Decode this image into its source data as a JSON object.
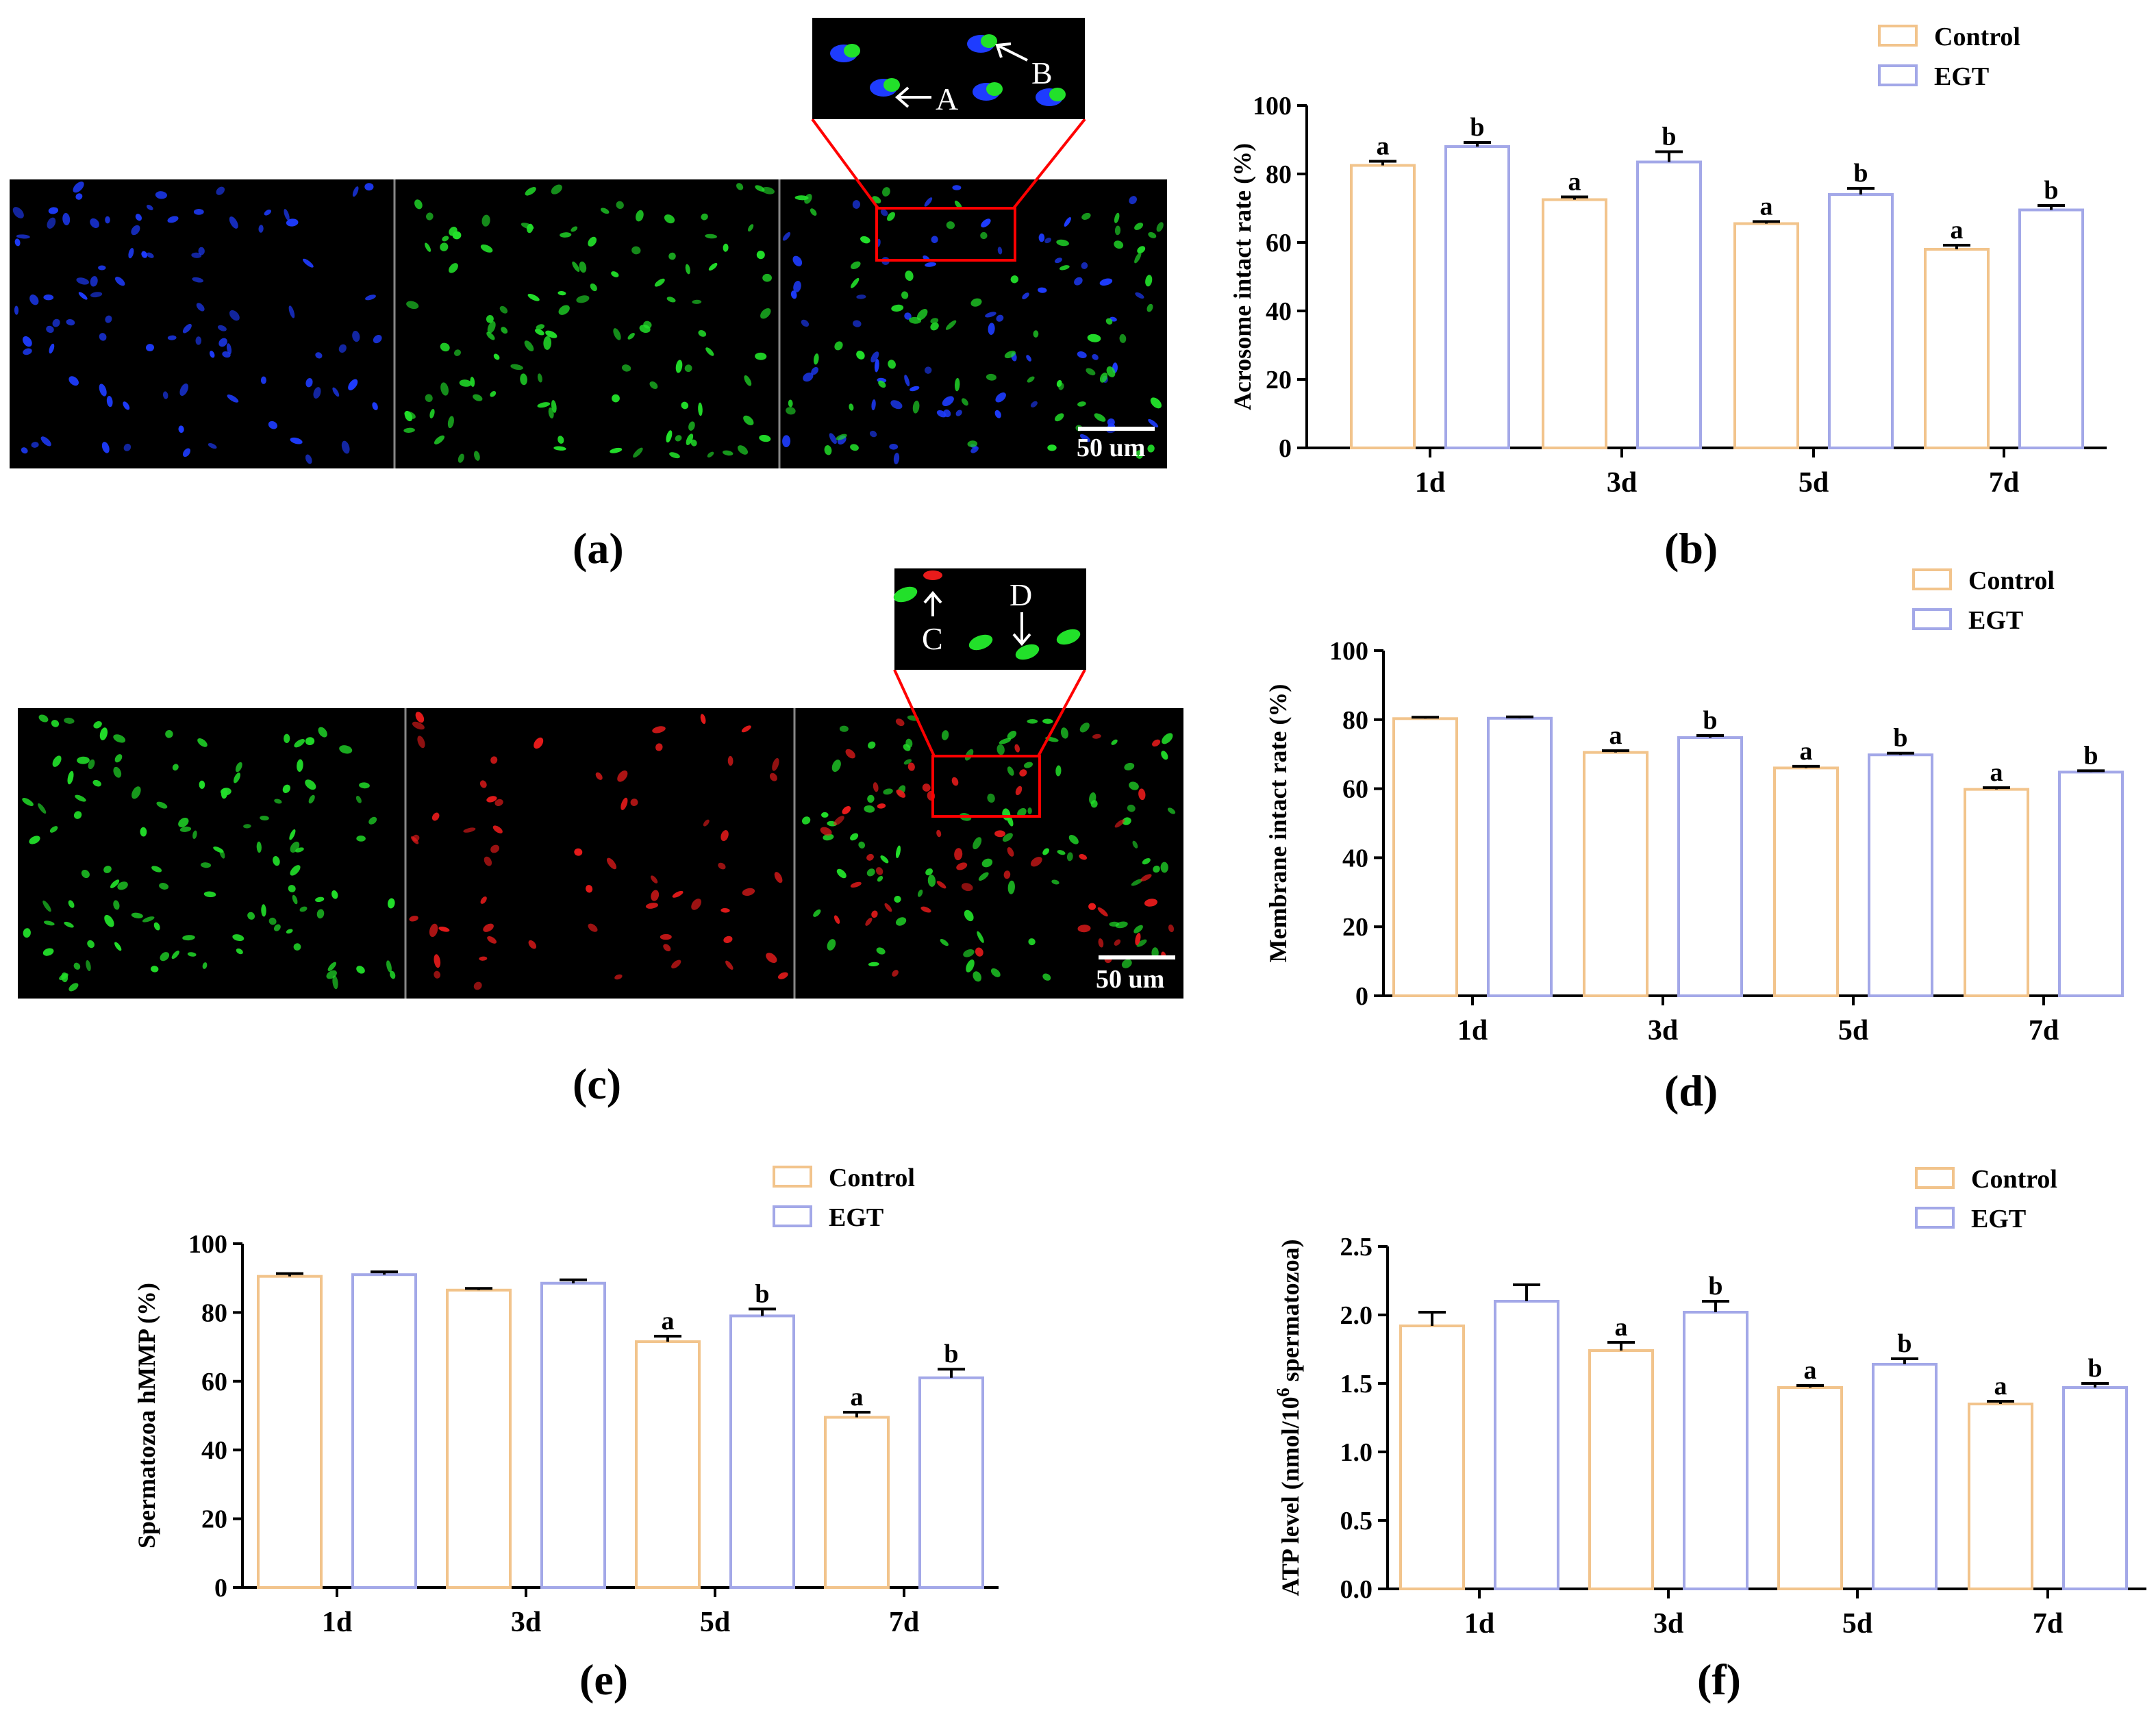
{
  "colors": {
    "control": "#f2c48c",
    "egt": "#a3a8e8",
    "blue_stain": "#1e3cff",
    "green_stain": "#22e02a",
    "red_stain": "#e81b1b",
    "zoom_box": "#ff0000"
  },
  "panels": {
    "a": "(a)",
    "b": "(b)",
    "c": "(c)",
    "d": "(d)",
    "e": "(e)",
    "f": "(f)"
  },
  "micrographs": [
    {
      "id": "a",
      "scale_bar": "50 um",
      "arrow_labels": [
        "A",
        "B"
      ],
      "subpanel_channels": [
        "blue",
        "green",
        "merge"
      ]
    },
    {
      "id": "c",
      "scale_bar": "50 um",
      "arrow_labels": [
        "C",
        "D"
      ],
      "subpanel_channels": [
        "green",
        "red",
        "merge"
      ]
    }
  ],
  "chart_data": [
    {
      "id": "b",
      "type": "bar",
      "categories": [
        "1d",
        "3d",
        "5d",
        "7d"
      ],
      "series": [
        {
          "name": "Control",
          "values": [
            82.5,
            72.5,
            65.5,
            58.0
          ],
          "errors": [
            1.2,
            0.8,
            0.6,
            1.2
          ],
          "sig": [
            "a",
            "a",
            "a",
            "a"
          ]
        },
        {
          "name": "EGT",
          "values": [
            88.0,
            83.5,
            74.0,
            69.5
          ],
          "errors": [
            1.2,
            3.0,
            1.8,
            1.3
          ],
          "sig": [
            "b",
            "b",
            "b",
            "b"
          ]
        }
      ],
      "ylabel": "Acrosome intact rate (%)",
      "ylim": [
        0,
        100
      ],
      "yticks": [
        "0",
        "20",
        "40",
        "60",
        "80",
        "100"
      ],
      "legend": [
        "Control",
        "EGT"
      ]
    },
    {
      "id": "d",
      "type": "bar",
      "categories": [
        "1d",
        "3d",
        "5d",
        "7d"
      ],
      "series": [
        {
          "name": "Control",
          "values": [
            80.3,
            70.5,
            66.0,
            59.8
          ],
          "errors": [
            0.4,
            0.5,
            0.5,
            0.5
          ],
          "sig": [
            "",
            "a",
            "a",
            "a"
          ]
        },
        {
          "name": "EGT",
          "values": [
            80.4,
            74.8,
            69.8,
            64.8
          ],
          "errors": [
            0.4,
            0.6,
            0.5,
            0.4
          ],
          "sig": [
            "",
            "b",
            "b",
            "b"
          ]
        }
      ],
      "ylabel": "Membrane intact rate (%)",
      "ylim": [
        0,
        100
      ],
      "yticks": [
        "0",
        "20",
        "40",
        "60",
        "80",
        "100"
      ],
      "legend": [
        "Control",
        "EGT"
      ]
    },
    {
      "id": "e",
      "type": "bar",
      "categories": [
        "1d",
        "3d",
        "5d",
        "7d"
      ],
      "series": [
        {
          "name": "Control",
          "values": [
            90.5,
            86.5,
            71.5,
            49.5
          ],
          "errors": [
            0.8,
            0.5,
            1.6,
            1.5
          ],
          "sig": [
            "",
            "",
            "a",
            "a"
          ]
        },
        {
          "name": "EGT",
          "values": [
            91.0,
            88.5,
            79.0,
            61.0
          ],
          "errors": [
            0.8,
            1.0,
            2.0,
            2.5
          ],
          "sig": [
            "",
            "",
            "b",
            "b"
          ]
        }
      ],
      "ylabel": "Spermatozoa hMMP (%)",
      "ylim": [
        0,
        100
      ],
      "yticks": [
        "0",
        "20",
        "40",
        "60",
        "80",
        "100"
      ],
      "legend": [
        "Control",
        "EGT"
      ]
    },
    {
      "id": "f",
      "type": "bar",
      "categories": [
        "1d",
        "3d",
        "5d",
        "7d"
      ],
      "series": [
        {
          "name": "Control",
          "values": [
            1.92,
            1.74,
            1.47,
            1.35
          ],
          "errors": [
            0.1,
            0.06,
            0.015,
            0.02
          ],
          "sig": [
            "",
            "a",
            "a",
            "a"
          ]
        },
        {
          "name": "EGT",
          "values": [
            2.1,
            2.02,
            1.64,
            1.47
          ],
          "errors": [
            0.12,
            0.08,
            0.04,
            0.03
          ],
          "sig": [
            "",
            "b",
            "b",
            "b"
          ]
        }
      ],
      "ylabel": "ATP level (nmol/10",
      "ylabel_sup": "6",
      "ylabel_tail": " spermatozoa)",
      "ylim": [
        0,
        2.5
      ],
      "yticks": [
        "0.0",
        "0.5",
        "1.0",
        "1.5",
        "2.0",
        "2.5"
      ],
      "legend": [
        "Control",
        "EGT"
      ]
    }
  ]
}
